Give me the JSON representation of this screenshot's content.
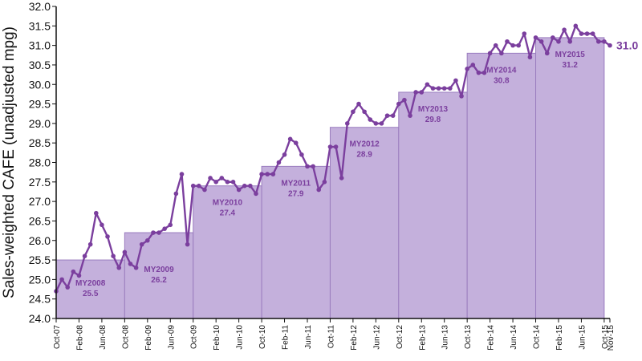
{
  "chart_data": {
    "type": "line",
    "ylabel": "Sales-weighted CAFE (unadjusted mpg)",
    "ylim": [
      24.0,
      32.0
    ],
    "yticks": [
      "24.0",
      "24.5",
      "25.0",
      "25.5",
      "26.0",
      "26.5",
      "27.0",
      "27.5",
      "28.0",
      "28.5",
      "29.0",
      "29.5",
      "30.0",
      "30.5",
      "31.0",
      "31.5",
      "32.0"
    ],
    "xticks": [
      {
        "month": 0,
        "label": "Oct-07"
      },
      {
        "month": 4,
        "label": "Feb-08"
      },
      {
        "month": 8,
        "label": "Jun-08"
      },
      {
        "month": 12,
        "label": "Oct-08"
      },
      {
        "month": 16,
        "label": "Feb-09"
      },
      {
        "month": 20,
        "label": "Jun-09"
      },
      {
        "month": 24,
        "label": "Oct-09"
      },
      {
        "month": 28,
        "label": "Feb-10"
      },
      {
        "month": 32,
        "label": "Jun-10"
      },
      {
        "month": 36,
        "label": "Oct-10"
      },
      {
        "month": 40,
        "label": "Feb-11"
      },
      {
        "month": 44,
        "label": "Jun-11"
      },
      {
        "month": 48,
        "label": "Oct-11"
      },
      {
        "month": 52,
        "label": "Feb-12"
      },
      {
        "month": 56,
        "label": "Jun-12"
      },
      {
        "month": 60,
        "label": "Oct-12"
      },
      {
        "month": 64,
        "label": "Feb-13"
      },
      {
        "month": 68,
        "label": "Jun-13"
      },
      {
        "month": 72,
        "label": "Oct-13"
      },
      {
        "month": 76,
        "label": "Feb-14"
      },
      {
        "month": 80,
        "label": "Jun-14"
      },
      {
        "month": 84,
        "label": "Oct-14"
      },
      {
        "month": 88,
        "label": "Feb-15"
      },
      {
        "month": 92,
        "label": "Jun-15"
      },
      {
        "month": 96,
        "label": "Oct-15"
      },
      {
        "month": 97,
        "label": "Nov-15"
      }
    ],
    "model_years": [
      {
        "name": "MY2008",
        "value": 25.5,
        "value_label": "25.5",
        "start_month": 0,
        "end_month": 12
      },
      {
        "name": "MY2009",
        "value": 26.2,
        "value_label": "26.2",
        "start_month": 12,
        "end_month": 24
      },
      {
        "name": "MY2010",
        "value": 27.4,
        "value_label": "27.4",
        "start_month": 24,
        "end_month": 36
      },
      {
        "name": "MY2011",
        "value": 27.9,
        "value_label": "27.9",
        "start_month": 36,
        "end_month": 48
      },
      {
        "name": "MY2012",
        "value": 28.9,
        "value_label": "28.9",
        "start_month": 48,
        "end_month": 60
      },
      {
        "name": "MY2013",
        "value": 29.8,
        "value_label": "29.8",
        "start_month": 60,
        "end_month": 72
      },
      {
        "name": "MY2014",
        "value": 30.8,
        "value_label": "30.8",
        "start_month": 72,
        "end_month": 84
      },
      {
        "name": "MY2015",
        "value": 31.2,
        "value_label": "31.2",
        "start_month": 84,
        "end_month": 96
      }
    ],
    "monthly_start": "Oct-07",
    "monthly_end": "Nov-15",
    "monthly_values": [
      24.7,
      25.0,
      24.8,
      25.2,
      25.1,
      25.6,
      25.9,
      26.7,
      26.4,
      26.1,
      25.6,
      25.3,
      25.7,
      25.4,
      25.3,
      25.9,
      26.0,
      26.2,
      26.2,
      26.3,
      26.4,
      27.2,
      27.7,
      25.9,
      27.4,
      27.4,
      27.3,
      27.6,
      27.5,
      27.6,
      27.5,
      27.5,
      27.3,
      27.4,
      27.4,
      27.2,
      27.7,
      27.7,
      27.7,
      28.0,
      28.2,
      28.6,
      28.5,
      28.2,
      27.9,
      27.9,
      27.3,
      27.5,
      28.4,
      28.4,
      27.6,
      29.0,
      29.3,
      29.5,
      29.3,
      29.1,
      29.0,
      29.0,
      29.2,
      29.2,
      29.5,
      29.6,
      29.2,
      29.8,
      29.8,
      30.0,
      29.9,
      29.9,
      29.9,
      29.9,
      30.1,
      29.7,
      30.4,
      30.5,
      30.3,
      30.3,
      30.8,
      31.0,
      30.8,
      31.1,
      31.0,
      31.0,
      31.3,
      30.7,
      31.2,
      31.1,
      30.8,
      31.2,
      31.1,
      31.4,
      31.1,
      31.5,
      31.3,
      31.3,
      31.3,
      31.1,
      31.1,
      31.0
    ],
    "end_label": "31.0",
    "colors": {
      "bar_fill": "#c4b0dc",
      "bar_stroke": "#9b7dbf",
      "line": "#7b3f9e",
      "marker": "#7b3f9e",
      "label": "#7b3f9e",
      "axis": "#111111"
    }
  }
}
